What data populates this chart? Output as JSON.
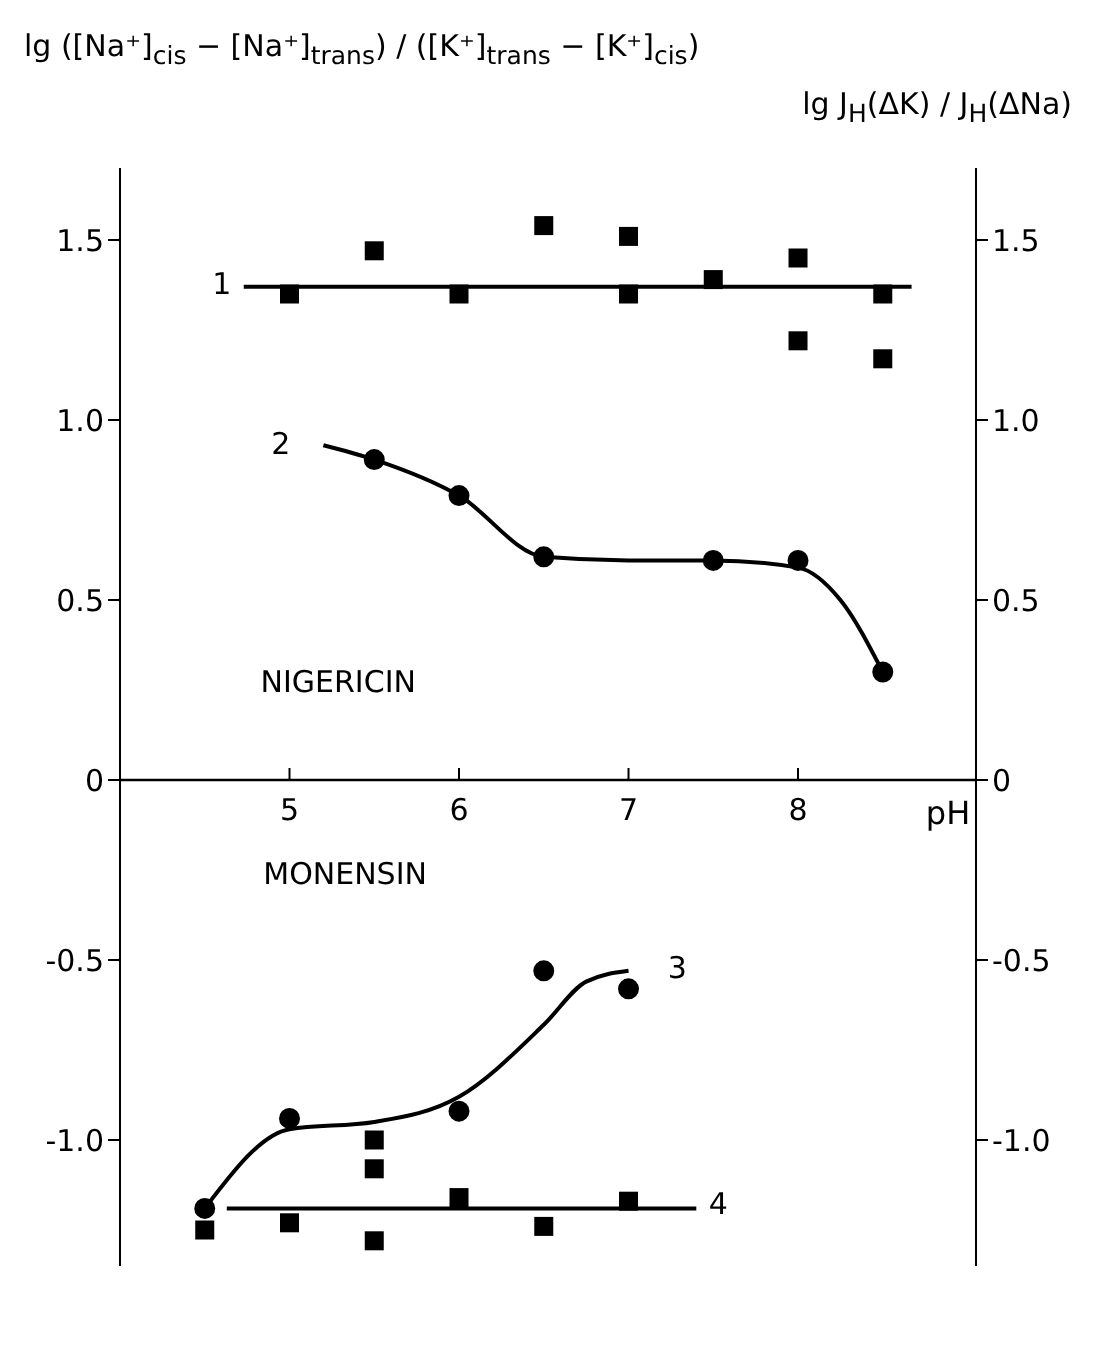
{
  "chart_data": {
    "type": "scatter",
    "ylabel": "lg ([Na⁺]$_{cis}$ − [Na⁺]$_{trans}$) / ([K⁺]$_{trans}$ − [K⁺]$_{cis}$)",
    "y2label": "lg J$_{H}$(ΔK) / J$_{H}$(ΔNa)",
    "xlabel": "pH",
    "xlim": [
      4,
      9.05
    ],
    "xticks": [
      5,
      6,
      7,
      8
    ],
    "ylim": [
      -1.35,
      1.7
    ],
    "yticks": [
      {
        "value": -1,
        "label": "-1.0"
      },
      -0.5,
      0,
      0.5,
      {
        "value": 1,
        "label": "1.0"
      },
      1.5
    ],
    "y2lim": [
      -1.35,
      1.7
    ],
    "y2ticks": [
      {
        "value": -1,
        "label": "-1.0"
      },
      -0.5,
      0,
      0.5,
      {
        "value": 1,
        "label": "1.0"
      },
      1.5
    ],
    "grid": false,
    "legend": false,
    "series": [
      {
        "marker": "square",
        "color": "#000000",
        "x": [
          5,
          5.5,
          6,
          6.5,
          7,
          7,
          7.5,
          8,
          8,
          8.5,
          8.5
        ],
        "values": [
          1.35,
          1.47,
          1.35,
          1.54,
          1.51,
          1.35,
          1.39,
          1.45,
          1.22,
          1.35,
          1.17
        ]
      },
      {
        "type": "line",
        "marker": "none",
        "color": "#000000",
        "x": [
          4.73,
          8.67
        ],
        "values": [
          1.37,
          1.37
        ]
      },
      {
        "marker": "circle",
        "color": "#000000",
        "x": [
          5.5,
          6,
          6.5,
          7.5,
          8,
          8.5
        ],
        "values": [
          0.89,
          0.79,
          0.62,
          0.61,
          0.61,
          0.3
        ]
      },
      {
        "type": "line",
        "marker": "none",
        "color": "#000000",
        "x": [
          5.2,
          5.5,
          6,
          6.5,
          7,
          7.5,
          8,
          8.25,
          8.5
        ],
        "values": [
          0.93,
          0.89,
          0.79,
          0.62,
          0.61,
          0.61,
          0.59,
          0.5,
          0.3
        ]
      },
      {
        "marker": "circle",
        "color": "#000000",
        "x": [
          4.5,
          5,
          6,
          6.5,
          7
        ],
        "values": [
          -1.19,
          -0.94,
          -0.92,
          -0.53,
          -0.58
        ]
      },
      {
        "type": "line",
        "marker": "none",
        "color": "#000000",
        "x": [
          4.5,
          5,
          5.5,
          6,
          6.5,
          6.75,
          7
        ],
        "values": [
          -1.19,
          -0.97,
          -0.95,
          -0.88,
          -0.68,
          -0.56,
          -0.53
        ]
      },
      {
        "marker": "square",
        "color": "#000000",
        "x": [
          4.5,
          5,
          5.5,
          5.5,
          5.5,
          6,
          6.5,
          7
        ],
        "values": [
          -1.25,
          -1.23,
          -1.0,
          -1.08,
          -1.28,
          -1.16,
          -1.24,
          -1.17
        ]
      },
      {
        "type": "line",
        "marker": "none",
        "color": "#000000",
        "x": [
          4.63,
          7.4
        ],
        "values": [
          -1.19,
          -1.19
        ]
      }
    ],
    "annotations": [
      "1",
      "2",
      "3",
      "4",
      "NIGERICIN",
      "MONENSIN"
    ]
  }
}
